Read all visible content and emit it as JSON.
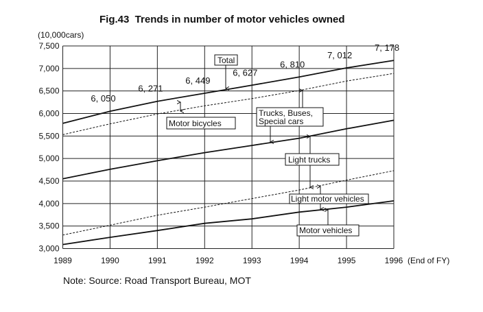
{
  "chart_data": {
    "type": "line",
    "title": "Fig.43  Trends in number of motor vehicles owned",
    "ylabel": "(10,000cars)",
    "xlabel": "(End of FY)",
    "x": [
      1989,
      1990,
      1991,
      1992,
      1993,
      1994,
      1995,
      1996
    ],
    "x_tick_labels": [
      "1989",
      "1990",
      "1991",
      "1992",
      "1993",
      "1994",
      "1995",
      "1996"
    ],
    "ylim": [
      3000,
      7500
    ],
    "y_ticks": [
      3000,
      3500,
      4000,
      4500,
      5000,
      5500,
      6000,
      6500,
      7000,
      7500
    ],
    "y_tick_labels": [
      "3,000",
      "3,500",
      "4,000",
      "4,500",
      "5,000",
      "5,500",
      "6,000",
      "6,500",
      "7,000",
      "7,500"
    ],
    "grid": true,
    "series": [
      {
        "name": "Total",
        "style": "solid",
        "values": [
          5780,
          6050,
          6271,
          6449,
          6627,
          6810,
          7012,
          7178
        ]
      },
      {
        "name": "Motor bicycles boundary",
        "style": "dashed",
        "values": [
          5530,
          5770,
          5990,
          6170,
          6330,
          6510,
          6720,
          6890
        ]
      },
      {
        "name": "Trucks, Buses, Special cars boundary",
        "style": "solid",
        "values": [
          4550,
          4760,
          4950,
          5130,
          5290,
          5450,
          5660,
          5850
        ]
      },
      {
        "name": "Light trucks boundary",
        "style": "dashed",
        "values": [
          3300,
          3520,
          3740,
          3920,
          4110,
          4300,
          4520,
          4730
        ]
      },
      {
        "name": "Motor vehicles",
        "style": "solid",
        "values": [
          3090,
          3250,
          3400,
          3560,
          3660,
          3810,
          3920,
          4060
        ]
      }
    ],
    "data_labels": [
      "6, 050",
      "6, 271",
      "6, 449",
      "6, 627",
      "6, 810",
      "7, 012",
      "7, 178"
    ],
    "annotations": {
      "total": "Total",
      "motor_bicycles": "Motor bicycles",
      "trucks_line1": "Trucks, Buses,",
      "trucks_line2": "Special cars",
      "light_trucks": "Light trucks",
      "light_motor": "Light motor vehicles",
      "motor_vehicles": "Motor vehicles"
    },
    "note": "Note: Source: Road Transport Bureau, MOT"
  }
}
